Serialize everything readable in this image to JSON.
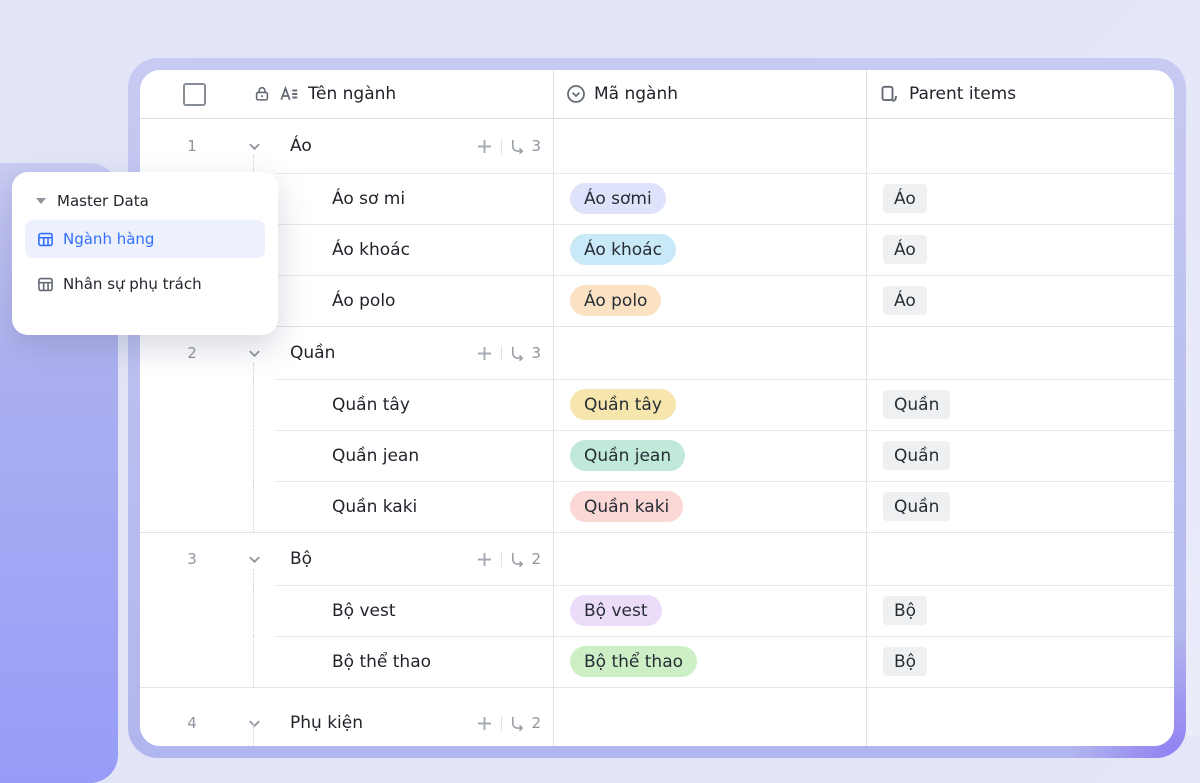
{
  "colors": {
    "accent_blue": "#3370ff",
    "tag_gray_bg": "#eff0f1",
    "band_purple": "#989cf8",
    "card_border_lavender": "#b8bcee"
  },
  "sidebar": {
    "group_label": "Master Data",
    "items": [
      {
        "label": "Ngành hàng",
        "active": true,
        "icon": "table-icon"
      },
      {
        "label": "Nhân sự phụ trách",
        "active": false,
        "icon": "table-icon"
      }
    ]
  },
  "table": {
    "columns": [
      {
        "label": "Tên ngành",
        "icons": [
          "lock-icon",
          "text-field-icon"
        ],
        "has_checkbox": true
      },
      {
        "label": "Mã ngành",
        "icon": "single-select-icon"
      },
      {
        "label": "Parent items",
        "icon": "linked-record-icon"
      }
    ],
    "rows": [
      {
        "type": "group",
        "num": "1",
        "name": "Áo",
        "subcount": "3"
      },
      {
        "type": "child",
        "name": "Áo sơ mi",
        "code": "Áo sơmi",
        "code_color": "#dfe2fb",
        "parent": "Áo"
      },
      {
        "type": "child",
        "name": "Áo khoác",
        "code": "Áo khoác",
        "code_color": "#c9e8f8",
        "parent": "Áo"
      },
      {
        "type": "child",
        "name": "Áo polo",
        "code": "Áo polo",
        "code_color": "#fbe2c3",
        "parent": "Áo"
      },
      {
        "type": "group",
        "num": "2",
        "name": "Quần",
        "subcount": "3"
      },
      {
        "type": "child",
        "name": "Quần tây",
        "code": "Quần tây",
        "code_color": "#f6e5ac",
        "parent": "Quần"
      },
      {
        "type": "child",
        "name": "Quần jean",
        "code": "Quần jean",
        "code_color": "#c0e9da",
        "parent": "Quần"
      },
      {
        "type": "child",
        "name": "Quần kaki",
        "code": "Quần kaki",
        "code_color": "#fbd7d6",
        "parent": "Quần"
      },
      {
        "type": "group",
        "num": "3",
        "name": "Bộ",
        "subcount": "2"
      },
      {
        "type": "child",
        "name": "Bộ vest",
        "code": "Bộ vest",
        "code_color": "#ebdcfa",
        "parent": "Bộ"
      },
      {
        "type": "child",
        "name": "Bộ thể thao",
        "code": "Bộ thể thao",
        "code_color": "#cdefc5",
        "parent": "Bộ"
      },
      {
        "type": "group",
        "num": "4",
        "name": "Phụ kiện",
        "subcount": "2"
      }
    ]
  }
}
